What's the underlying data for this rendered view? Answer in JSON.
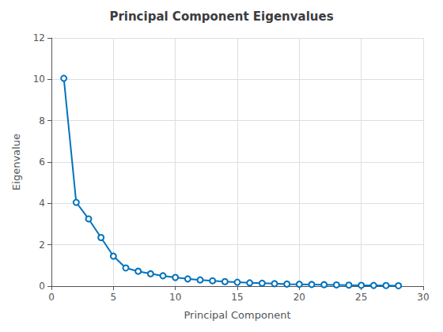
{
  "chart_data": {
    "type": "line",
    "title": "Principal Component Eigenvalues",
    "xlabel": "Principal Component",
    "ylabel": "Eigenvalue",
    "x": [
      1,
      2,
      3,
      4,
      5,
      6,
      7,
      8,
      9,
      10,
      11,
      12,
      13,
      14,
      15,
      16,
      17,
      18,
      19,
      20,
      21,
      22,
      23,
      24,
      25,
      26,
      27,
      28
    ],
    "values": [
      10.05,
      4.05,
      3.25,
      2.35,
      1.45,
      0.88,
      0.72,
      0.6,
      0.5,
      0.42,
      0.35,
      0.3,
      0.26,
      0.22,
      0.19,
      0.16,
      0.14,
      0.12,
      0.1,
      0.09,
      0.08,
      0.07,
      0.06,
      0.05,
      0.04,
      0.035,
      0.03,
      0.02
    ],
    "xlim": [
      0,
      30
    ],
    "xticks": [
      0,
      5,
      10,
      15,
      20,
      25,
      30
    ],
    "ylim": [
      0,
      12
    ],
    "yticks": [
      0,
      2,
      4,
      6,
      8,
      10,
      12
    ],
    "color": "#0072BD",
    "marker": "circle",
    "grid": true
  }
}
